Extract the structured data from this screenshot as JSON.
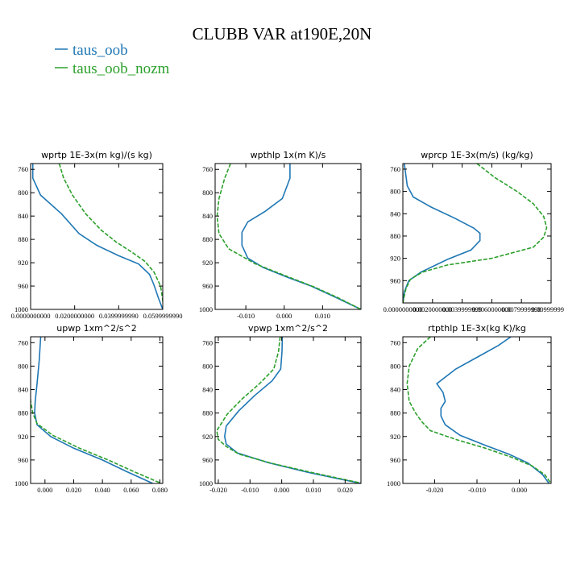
{
  "figure": {
    "title": "CLUBB VAR at190E,20N",
    "legend": [
      {
        "label": "taus_oob",
        "color": "#1f77b4"
      },
      {
        "label": "taus_oob_nozm",
        "color": "#2ca02c"
      }
    ]
  },
  "chart_data": [
    {
      "type": "line",
      "title": "wprtp  1E-3x(m kg)/(s kg)",
      "xlim": [
        0.0,
        0.06
      ],
      "ylim": [
        1000,
        750
      ],
      "xticks": [
        0.0,
        0.02,
        0.04,
        0.06
      ],
      "xtick_labels": [
        "0.0000000000",
        "0.0200000000",
        "0.0399999990",
        "0.0599999990"
      ],
      "yticks": [
        760,
        800,
        840,
        880,
        920,
        960,
        1000
      ],
      "ytick_labels": [
        "760",
        "800",
        "840",
        "880",
        "920",
        "960",
        "1000"
      ],
      "series": [
        {
          "name": "taus_oob",
          "x": [
            0.001,
            0.001,
            0.0045,
            0.014,
            0.022,
            0.03,
            0.04,
            0.049,
            0.054,
            0.056,
            0.058,
            0.06
          ],
          "y": [
            750,
            775,
            804,
            836,
            870,
            890,
            908,
            922,
            940,
            958,
            980,
            1000
          ]
        },
        {
          "name": "taus_oob_nozm",
          "x": [
            0.013,
            0.015,
            0.019,
            0.025,
            0.032,
            0.039,
            0.046,
            0.052,
            0.056,
            0.059,
            0.0598,
            0.0605
          ],
          "y": [
            750,
            775,
            804,
            836,
            864,
            885,
            902,
            918,
            936,
            960,
            980,
            1000
          ]
        }
      ]
    },
    {
      "type": "line",
      "title": "wpthlp  1x(m K)/s",
      "xlim": [
        -0.018,
        0.02
      ],
      "ylim": [
        1000,
        750
      ],
      "xticks": [
        -0.01,
        0.0,
        0.01
      ],
      "xtick_labels": [
        "-0.010",
        "0.000",
        "0.010"
      ],
      "yticks": [
        760,
        800,
        840,
        880,
        920,
        960,
        1000
      ],
      "ytick_labels": [
        "760",
        "800",
        "840",
        "880",
        "920",
        "960",
        "1000"
      ],
      "series": [
        {
          "name": "taus_oob",
          "x": [
            0.0015,
            0.0015,
            -0.0005,
            -0.005,
            -0.0095,
            -0.011,
            -0.011,
            -0.0095,
            -0.0055,
            0.0005,
            0.007,
            0.013,
            0.02
          ],
          "y": [
            750,
            775,
            810,
            832,
            850,
            868,
            890,
            912,
            928,
            944,
            960,
            978,
            1000
          ]
        },
        {
          "name": "taus_oob_nozm",
          "x": [
            -0.014,
            -0.0155,
            -0.017,
            -0.0175,
            -0.017,
            -0.0145,
            -0.0075,
            0.001,
            0.008,
            0.014,
            0.02
          ],
          "y": [
            750,
            775,
            810,
            840,
            870,
            896,
            922,
            944,
            962,
            980,
            1000
          ]
        }
      ]
    },
    {
      "type": "line",
      "title": "wprcp  1E-3x(m/s) (kg/kg)",
      "xlim": [
        0.0,
        0.01
      ],
      "ylim": [
        1000,
        750
      ],
      "xticks": [
        0.0,
        0.002,
        0.004,
        0.006,
        0.008,
        0.01
      ],
      "xtick_labels": [
        "0.0000000000",
        "0.0020000000",
        "0.0039999999",
        "0.0060000000",
        "0.0079999998",
        "0.0099999998"
      ],
      "yticks": [
        760,
        800,
        840,
        880,
        920,
        960
      ],
      "ytick_labels": [
        "760",
        "800",
        "840",
        "880",
        "920",
        "960"
      ],
      "series": [
        {
          "name": "taus_oob",
          "x": [
            0.0001,
            0.0003,
            0.0007,
            0.0019,
            0.0035,
            0.0048,
            0.0052,
            0.0052,
            0.0046,
            0.003,
            0.0012,
            0.0004,
            0.0001,
            0.0
          ],
          "y": [
            750,
            790,
            810,
            828,
            848,
            866,
            875,
            888,
            905,
            922,
            945,
            960,
            980,
            1000
          ]
        },
        {
          "name": "taus_oob_nozm",
          "x": [
            0.005,
            0.0062,
            0.0077,
            0.0088,
            0.0095,
            0.0097,
            0.0095,
            0.0088,
            0.006,
            0.003,
            0.0013,
            0.0005,
            0.0002,
            0.0
          ],
          "y": [
            750,
            775,
            800,
            822,
            845,
            865,
            882,
            900,
            920,
            932,
            945,
            958,
            975,
            1000
          ]
        }
      ]
    },
    {
      "type": "line",
      "title": "upwp  1xm^2/s^2",
      "xlim": [
        -0.01,
        0.082
      ],
      "ylim": [
        1000,
        750
      ],
      "xticks": [
        0.0,
        0.02,
        0.04,
        0.06,
        0.08
      ],
      "xtick_labels": [
        "0.000",
        "0.020",
        "0.040",
        "0.060",
        "0.080"
      ],
      "yticks": [
        760,
        800,
        840,
        880,
        920,
        960,
        1000
      ],
      "ytick_labels": [
        "760",
        "800",
        "840",
        "880",
        "920",
        "960",
        "1000"
      ],
      "series": [
        {
          "name": "taus_oob",
          "x": [
            -0.003,
            -0.004,
            -0.0055,
            -0.0068,
            -0.0072,
            -0.0055,
            0.004,
            0.02,
            0.04,
            0.057,
            0.075
          ],
          "y": [
            750,
            790,
            830,
            860,
            880,
            900,
            920,
            940,
            960,
            980,
            1000
          ]
        },
        {
          "name": "taus_oob_nozm",
          "x": [
            -0.0102,
            -0.0105,
            -0.0105,
            -0.01,
            -0.0085,
            -0.0055,
            0.0055,
            0.024,
            0.044,
            0.062,
            0.081
          ],
          "y": [
            750,
            790,
            830,
            860,
            880,
            898,
            918,
            940,
            960,
            980,
            1000
          ]
        }
      ]
    },
    {
      "type": "line",
      "title": "vpwp  1xm^2/s^2",
      "xlim": [
        -0.021,
        0.025
      ],
      "ylim": [
        1000,
        750
      ],
      "xticks": [
        -0.02,
        -0.01,
        0.0,
        0.01,
        0.02
      ],
      "xtick_labels": [
        "-0.020",
        "-0.010",
        "0.000",
        "0.010",
        "0.020"
      ],
      "yticks": [
        760,
        800,
        840,
        880,
        920,
        960,
        1000
      ],
      "ytick_labels": [
        "760",
        "800",
        "840",
        "880",
        "920",
        "960",
        "1000"
      ],
      "series": [
        {
          "name": "taus_oob",
          "x": [
            0.0002,
            0.0001,
            -0.0003,
            -0.003,
            -0.0085,
            -0.0135,
            -0.0175,
            -0.018,
            -0.0175,
            -0.014,
            -0.004,
            0.009,
            0.025
          ],
          "y": [
            750,
            775,
            805,
            825,
            850,
            876,
            902,
            920,
            933,
            948,
            965,
            982,
            1000
          ]
        },
        {
          "name": "taus_oob_nozm",
          "x": [
            -0.0005,
            -0.001,
            -0.0025,
            -0.007,
            -0.0125,
            -0.0172,
            -0.0205,
            -0.02,
            -0.0175,
            -0.0135,
            -0.003,
            0.01,
            0.0255
          ],
          "y": [
            750,
            775,
            805,
            830,
            856,
            882,
            910,
            925,
            937,
            950,
            966,
            982,
            1000
          ]
        }
      ]
    },
    {
      "type": "line",
      "title": "rtpthlp  1E-3x(kg K)/kg",
      "xlim": [
        -0.0275,
        0.0075
      ],
      "ylim": [
        1000,
        750
      ],
      "xticks": [
        -0.02,
        -0.01,
        0.0
      ],
      "xtick_labels": [
        "-0.020",
        "-0.010",
        "0.000"
      ],
      "yticks": [
        760,
        800,
        840,
        880,
        920,
        960,
        1000
      ],
      "ytick_labels": [
        "760",
        "800",
        "840",
        "880",
        "920",
        "960",
        "1000"
      ],
      "series": [
        {
          "name": "taus_oob",
          "x": [
            -0.002,
            -0.005,
            -0.01,
            -0.015,
            -0.0195,
            -0.018,
            -0.0175,
            -0.0185,
            -0.0185,
            -0.0175,
            -0.014,
            -0.008,
            -0.0025,
            0.002,
            0.0055,
            0.007
          ],
          "y": [
            750,
            765,
            785,
            805,
            830,
            845,
            860,
            872,
            885,
            900,
            918,
            935,
            950,
            965,
            985,
            1000
          ]
        },
        {
          "name": "taus_oob_nozm",
          "x": [
            -0.021,
            -0.024,
            -0.026,
            -0.0265,
            -0.026,
            -0.0245,
            -0.023,
            -0.021,
            -0.015,
            -0.008,
            -0.002,
            0.003,
            0.006,
            0.0075
          ],
          "y": [
            750,
            770,
            800,
            830,
            860,
            880,
            895,
            910,
            925,
            940,
            955,
            970,
            985,
            1000
          ]
        }
      ]
    }
  ]
}
